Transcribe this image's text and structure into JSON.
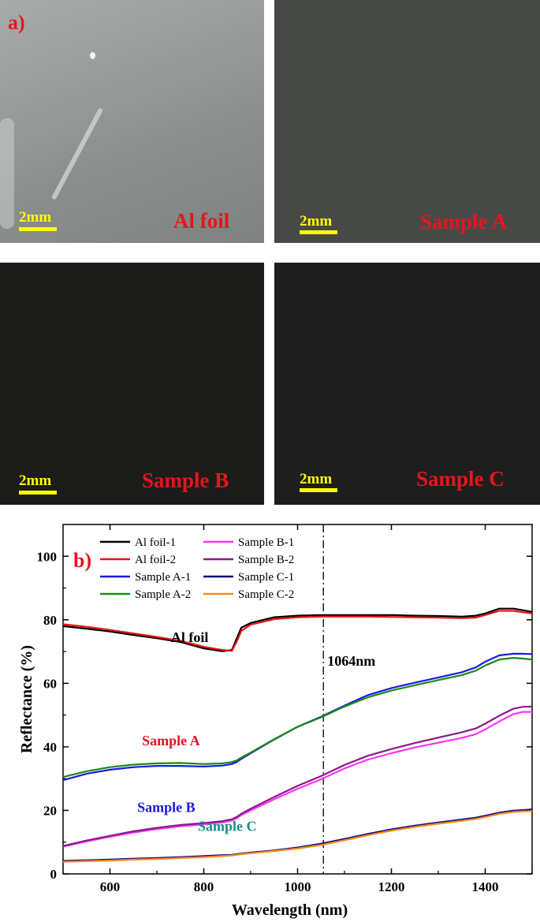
{
  "panel_a": {
    "label": "a)",
    "photos": [
      {
        "name": "Al foil",
        "scale": "2mm",
        "bg": "#8e9290"
      },
      {
        "name": "Sample A",
        "scale": "2mm",
        "bg": "#474947"
      },
      {
        "name": "Sample B",
        "scale": "2mm",
        "bg": "#1c1c1a"
      },
      {
        "name": "Sample C",
        "scale": "2mm",
        "bg": "#1e1e1e"
      }
    ]
  },
  "chart_data": {
    "type": "line",
    "panel_label": "b)",
    "xlabel": "Wavelength (nm)",
    "ylabel": "Reflectance (%)",
    "xlim": [
      500,
      1500
    ],
    "ylim": [
      0,
      110
    ],
    "xticks": [
      600,
      800,
      1000,
      1200,
      1400
    ],
    "yticks": [
      0,
      20,
      40,
      60,
      80,
      100
    ],
    "legend_position": "top",
    "reference_line": {
      "x": 1055,
      "label": "1064nm"
    },
    "annotations": [
      {
        "text": "Al foil",
        "x": 770,
        "y": 73,
        "color": "#000000"
      },
      {
        "text": "Sample A",
        "x": 730,
        "y": 40.5,
        "color": "#e8141c"
      },
      {
        "text": "Sample B",
        "x": 720,
        "y": 19.5,
        "color": "#1a1ae0"
      },
      {
        "text": "Sample C",
        "x": 850,
        "y": 13.5,
        "color": "#1a8a8a"
      }
    ],
    "x": [
      500,
      550,
      600,
      650,
      700,
      750,
      800,
      840,
      860,
      870,
      880,
      900,
      950,
      1000,
      1050,
      1100,
      1150,
      1200,
      1250,
      1300,
      1350,
      1380,
      1400,
      1430,
      1460,
      1480,
      1500
    ],
    "series": [
      {
        "name": "Al foil-1",
        "color": "#000000",
        "values": [
          78.0,
          77.2,
          76.3,
          75.2,
          74.2,
          73.0,
          71.0,
          70.1,
          70.5,
          74.0,
          77.5,
          79.0,
          80.8,
          81.3,
          81.5,
          81.5,
          81.5,
          81.5,
          81.3,
          81.2,
          81.0,
          81.3,
          82.0,
          83.5,
          83.5,
          83.0,
          82.5
        ]
      },
      {
        "name": "Al foil-2",
        "color": "#e8141c",
        "values": [
          78.6,
          77.8,
          76.8,
          75.7,
          74.6,
          73.4,
          71.5,
          70.5,
          70.2,
          73.0,
          76.5,
          78.5,
          80.2,
          80.8,
          81.0,
          81.0,
          81.0,
          80.9,
          80.8,
          80.7,
          80.5,
          80.7,
          81.5,
          82.8,
          82.8,
          82.4,
          82.0
        ]
      },
      {
        "name": "Sample A-1",
        "color": "#1a1ae0",
        "values": [
          29.5,
          31.5,
          32.8,
          33.6,
          34.0,
          34.0,
          33.8,
          34.1,
          34.6,
          35.2,
          36.2,
          38.0,
          42.3,
          46.3,
          49.5,
          53.0,
          56.3,
          58.5,
          60.2,
          61.8,
          63.5,
          65.0,
          66.8,
          68.8,
          69.3,
          69.3,
          69.2
        ]
      },
      {
        "name": "Sample A-2",
        "color": "#1a8a1a",
        "values": [
          30.5,
          32.3,
          33.6,
          34.4,
          34.8,
          34.9,
          34.6,
          34.8,
          35.2,
          35.7,
          36.6,
          38.2,
          42.4,
          46.3,
          49.3,
          52.7,
          55.6,
          57.7,
          59.4,
          61.0,
          62.6,
          64.0,
          65.6,
          67.5,
          68.0,
          67.8,
          67.5
        ]
      },
      {
        "name": "Sample B-1",
        "color": "#ff33ff",
        "values": [
          8.6,
          10.2,
          11.7,
          13.0,
          14.1,
          15.0,
          15.6,
          16.2,
          16.8,
          17.5,
          18.5,
          20.0,
          23.5,
          26.8,
          29.8,
          33.2,
          36.0,
          38.0,
          39.8,
          41.3,
          42.8,
          44.0,
          45.5,
          48.0,
          50.3,
          51.0,
          51.0
        ]
      },
      {
        "name": "Sample B-2",
        "color": "#8a1a8a",
        "values": [
          8.8,
          10.5,
          12.0,
          13.4,
          14.5,
          15.4,
          16.0,
          16.6,
          17.2,
          17.9,
          18.9,
          20.5,
          24.2,
          27.7,
          30.8,
          34.3,
          37.2,
          39.3,
          41.2,
          42.9,
          44.6,
          45.8,
          47.3,
          49.8,
          52.0,
          52.6,
          52.7
        ]
      },
      {
        "name": "Sample C-1",
        "color": "#101080",
        "values": [
          4.1,
          4.3,
          4.5,
          4.8,
          5.0,
          5.3,
          5.6,
          5.9,
          6.0,
          6.2,
          6.4,
          6.7,
          7.4,
          8.3,
          9.5,
          11.0,
          12.6,
          14.0,
          15.2,
          16.2,
          17.1,
          17.7,
          18.3,
          19.3,
          19.9,
          20.1,
          20.3
        ]
      },
      {
        "name": "Sample C-2",
        "color": "#ff8a1a",
        "values": [
          3.8,
          4.0,
          4.2,
          4.5,
          4.7,
          5.0,
          5.3,
          5.6,
          5.8,
          6.0,
          6.2,
          6.5,
          7.2,
          8.0,
          9.1,
          10.6,
          12.2,
          13.6,
          14.8,
          15.8,
          16.7,
          17.3,
          17.9,
          18.9,
          19.5,
          19.7,
          19.8
        ]
      }
    ]
  }
}
